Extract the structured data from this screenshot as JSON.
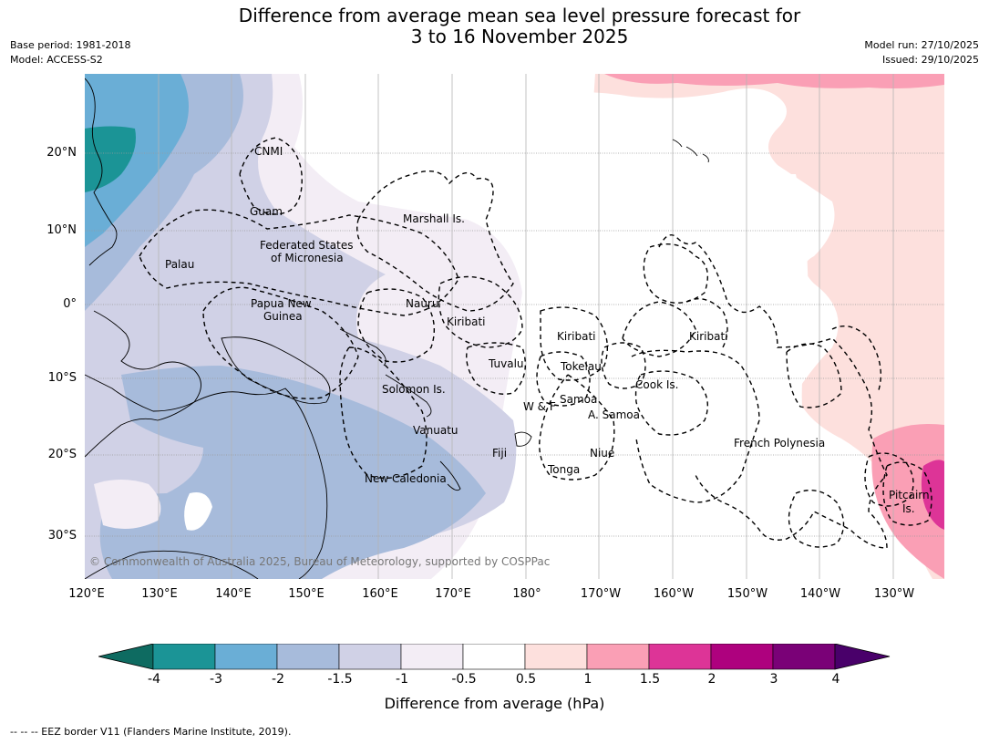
{
  "title_line1": "Difference from average mean sea level pressure forecast for",
  "title_line2": "3 to 16 November 2025",
  "meta": {
    "base_period": "Base period: 1981-2018",
    "model": "Model: ACCESS-S2",
    "model_run": "Model run: 27/10/2025",
    "issued": "Issued: 29/10/2025"
  },
  "lat_labels": [
    "20°N",
    "10°N",
    "0°",
    "10°S",
    "20°S",
    "30°S"
  ],
  "lon_labels": [
    "120°E",
    "130°E",
    "140°E",
    "150°E",
    "160°E",
    "170°E",
    "180°",
    "170°W",
    "160°W",
    "150°W",
    "140°W",
    "130°W"
  ],
  "regions": [
    "CNMI",
    "Guam",
    "Marshall Is.",
    "Federated States",
    "of Micronesia",
    "Palau",
    "Papua New",
    "Guinea",
    "Nauru",
    "Kiribati",
    "Kiribati",
    "Kiribati",
    "Tuvalu",
    "Tokelau",
    "Cook Is.",
    "Solomon Is.",
    "W & F",
    "Samoa",
    "A. Samoa",
    "Vanuatu",
    "Fiji",
    "Niue",
    "French Polynesia",
    "Tonga",
    "New Caledonia",
    "Pitcairn",
    "Is."
  ],
  "copyright": "© Commonwealth of Australia 2025, Bureau of Meteorology, supported by COSPPac",
  "colorbar": {
    "ticks": [
      "-4",
      "-3",
      "-2",
      "-1.5",
      "-1",
      "-0.5",
      "0.5",
      "1",
      "1.5",
      "2",
      "3",
      "4"
    ],
    "colors": [
      "#0e6b61",
      "#1b9496",
      "#6aaed6",
      "#a7bbdb",
      "#d0d1e6",
      "#f3edf5",
      "#ffffff",
      "#fde0dd",
      "#fa9fb5",
      "#dd3497",
      "#ae017e",
      "#7a0177",
      "#49006a"
    ],
    "label": "Difference from average (hPa)"
  },
  "footnote": "--  --  -- EEZ border V11 (Flanders Marine Institute, 2019)."
}
